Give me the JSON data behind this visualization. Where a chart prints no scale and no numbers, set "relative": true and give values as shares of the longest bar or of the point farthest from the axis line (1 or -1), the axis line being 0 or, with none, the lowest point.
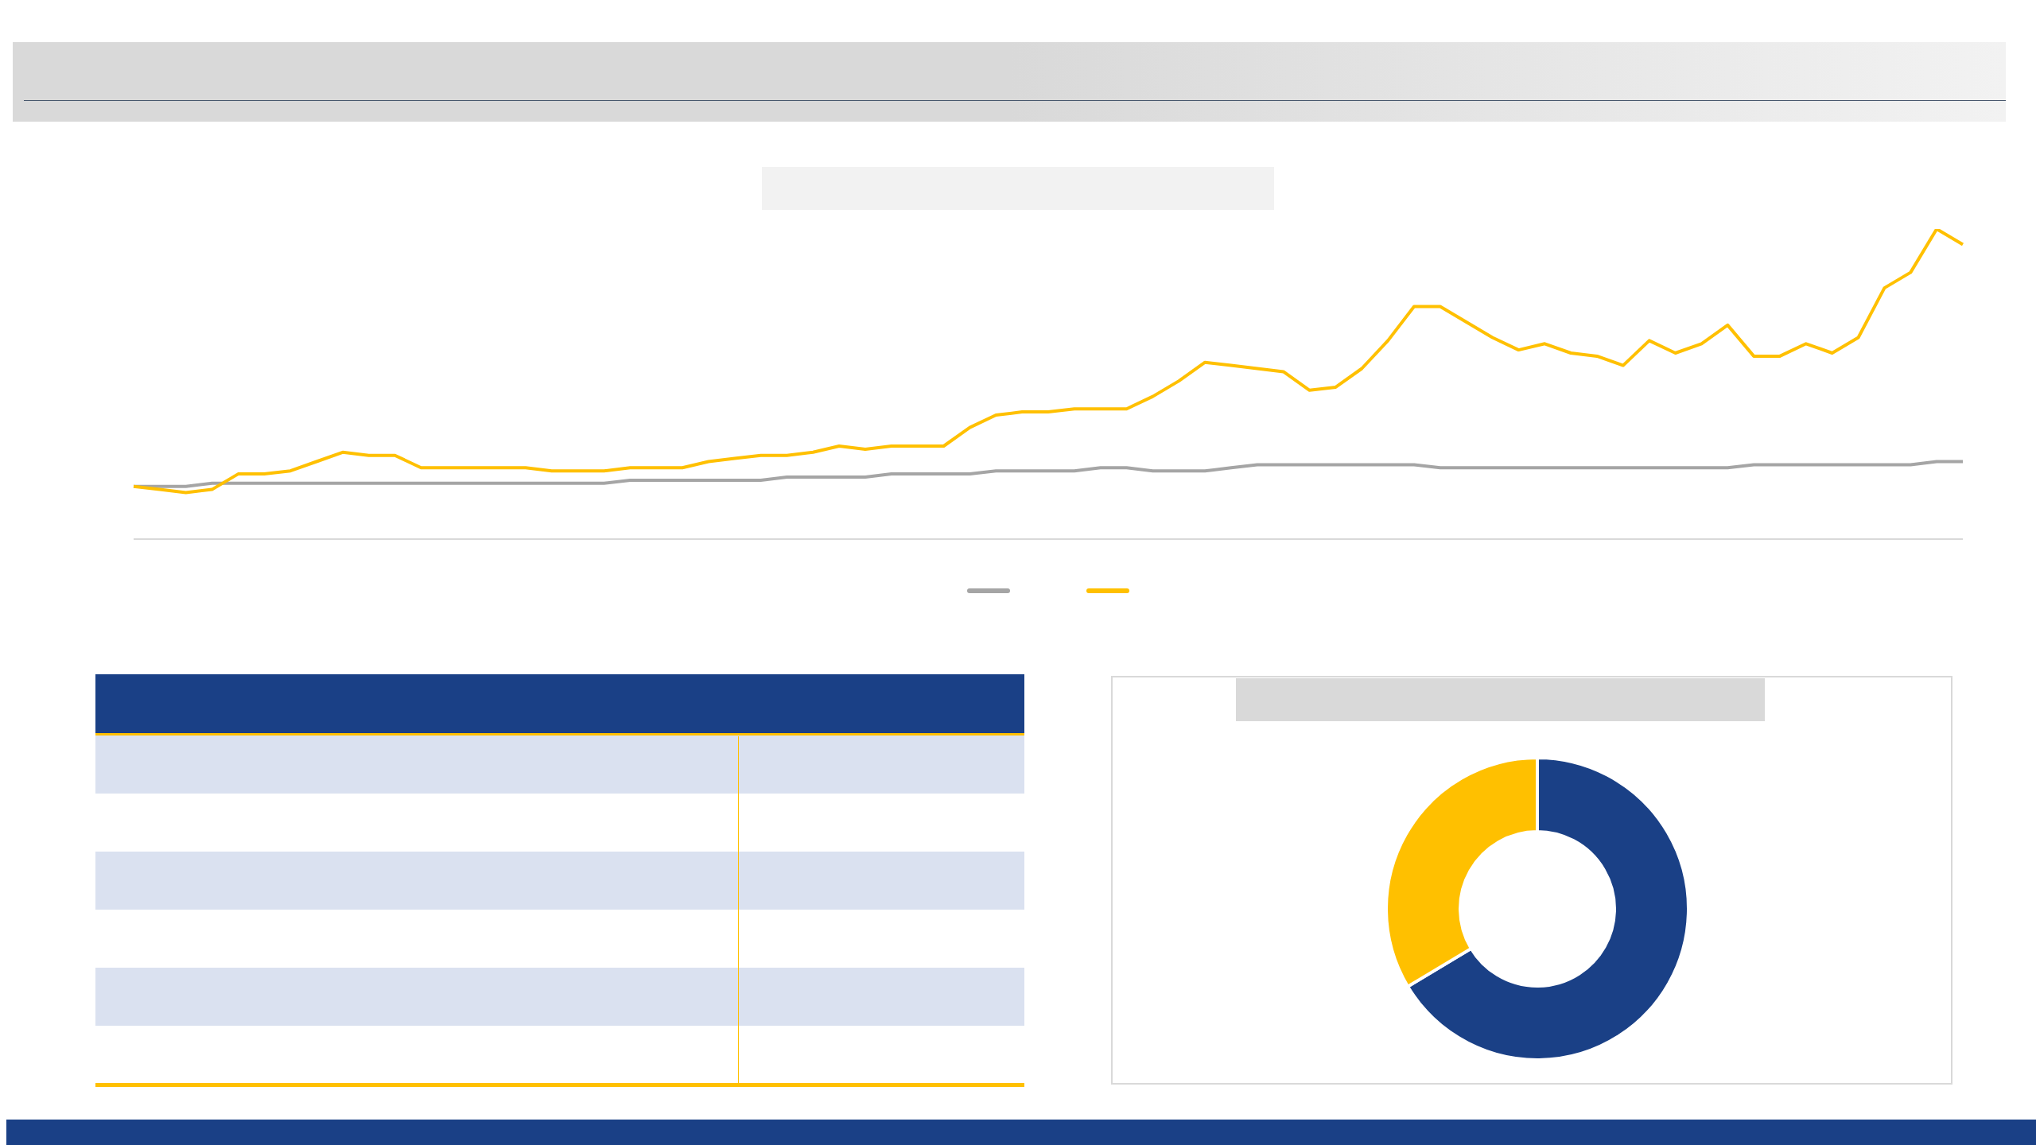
{
  "chart_data": [
    {
      "type": "line",
      "relative": true,
      "marker": "none",
      "line_style": "solid",
      "categories": [
        null,
        null,
        null,
        null,
        null,
        null,
        null,
        null,
        null,
        null,
        null,
        null,
        null,
        null,
        null,
        null,
        null,
        null,
        null,
        null,
        null,
        null,
        null,
        null,
        null,
        null,
        null,
        null,
        null,
        null,
        null,
        null,
        null,
        null,
        null,
        null,
        null,
        null,
        null,
        null,
        null,
        null,
        null,
        null,
        null,
        null,
        null,
        null,
        null,
        null,
        null,
        null,
        null,
        null,
        null,
        null,
        null,
        null,
        null,
        null,
        null,
        null,
        null,
        null,
        null,
        null,
        null,
        null,
        null,
        null,
        null
      ],
      "series": [
        {
          "color": "#a5a5a5",
          "values": [
            0.17,
            0.17,
            0.17,
            0.18,
            0.18,
            0.18,
            0.18,
            0.18,
            0.18,
            0.18,
            0.18,
            0.18,
            0.18,
            0.18,
            0.18,
            0.18,
            0.18,
            0.18,
            0.18,
            0.19,
            0.19,
            0.19,
            0.19,
            0.19,
            0.19,
            0.2,
            0.2,
            0.2,
            0.2,
            0.21,
            0.21,
            0.21,
            0.21,
            0.22,
            0.22,
            0.22,
            0.22,
            0.23,
            0.23,
            0.22,
            0.22,
            0.22,
            0.23,
            0.24,
            0.24,
            0.24,
            0.24,
            0.24,
            0.24,
            0.24,
            0.23,
            0.23,
            0.23,
            0.23,
            0.23,
            0.23,
            0.23,
            0.23,
            0.23,
            0.23,
            0.23,
            0.23,
            0.24,
            0.24,
            0.24,
            0.24,
            0.24,
            0.24,
            0.24,
            0.25,
            0.25
          ]
        },
        {
          "color": "#ffc000",
          "values": [
            0.17,
            0.16,
            0.15,
            0.16,
            0.21,
            0.21,
            0.22,
            0.25,
            0.28,
            0.27,
            0.27,
            0.23,
            0.23,
            0.23,
            0.23,
            0.23,
            0.22,
            0.22,
            0.22,
            0.23,
            0.23,
            0.23,
            0.25,
            0.26,
            0.27,
            0.27,
            0.28,
            0.3,
            0.29,
            0.3,
            0.3,
            0.3,
            0.36,
            0.4,
            0.41,
            0.41,
            0.42,
            0.42,
            0.42,
            0.46,
            0.51,
            0.57,
            0.56,
            0.55,
            0.54,
            0.48,
            0.49,
            0.55,
            0.64,
            0.75,
            0.75,
            0.7,
            0.65,
            0.61,
            0.63,
            0.6,
            0.59,
            0.56,
            0.64,
            0.6,
            0.63,
            0.69,
            0.59,
            0.59,
            0.63,
            0.6,
            0.65,
            0.81,
            0.86,
            1,
            0.95
          ]
        }
      ]
    },
    {
      "type": "donut",
      "categories": [
        null,
        null
      ],
      "values": [
        66.4,
        33.6
      ],
      "colors": [
        "#1a4086",
        "#ffc000"
      ]
    }
  ]
}
